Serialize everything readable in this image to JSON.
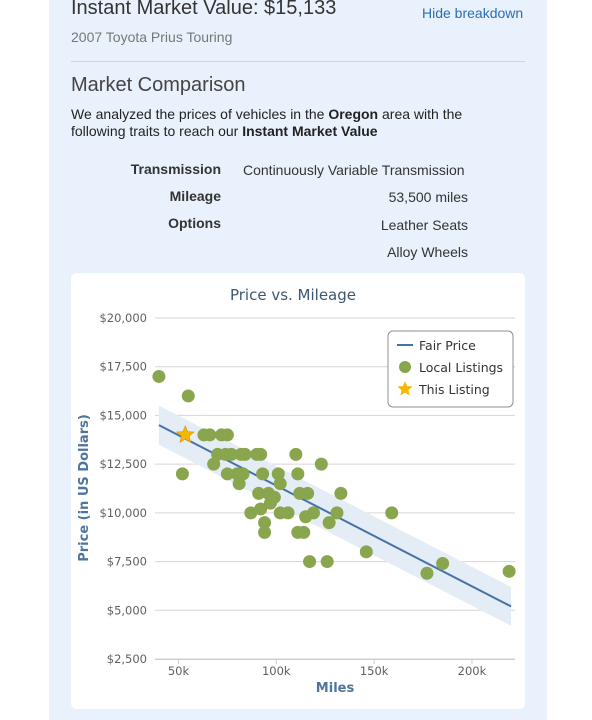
{
  "header": {
    "title": "Instant Market Value: $15,133",
    "hide_label": "Hide breakdown",
    "vehicle": "2007 Toyota Prius Touring"
  },
  "comparison": {
    "title": "Market Comparison",
    "desc_prefix": "We analyzed the prices of vehicles in the ",
    "region": "Oregon",
    "desc_middle": " area with the following traits to reach our ",
    "imv": "Instant Market Value",
    "traits": [
      {
        "label": "Transmission",
        "values": [
          "Continuously Variable Transmission"
        ]
      },
      {
        "label": "Mileage",
        "values": [
          "53,500 miles"
        ]
      },
      {
        "label": "Options",
        "values": [
          "Leather Seats",
          "Alloy Wheels"
        ]
      }
    ]
  },
  "chart_data": {
    "type": "scatter",
    "title": "Price vs. Mileage",
    "xlabel": "Miles",
    "ylabel": "Price (in US Dollars)",
    "xlim": [
      38000,
      222000
    ],
    "ylim": [
      2500,
      20000
    ],
    "x_ticks": [
      50000,
      100000,
      150000,
      200000
    ],
    "x_tick_labels": [
      "50k",
      "100k",
      "150k",
      "200k"
    ],
    "y_ticks": [
      2500,
      5000,
      7500,
      10000,
      12500,
      15000,
      17500,
      20000
    ],
    "y_tick_labels": [
      "$2,500",
      "$5,000",
      "$7,500",
      "$10,000",
      "$12,500",
      "$15,000",
      "$17,500",
      "$20,000"
    ],
    "grid": true,
    "legend_position": "top-right",
    "legend": [
      "Fair Price",
      "Local Listings",
      "This Listing"
    ],
    "colors": {
      "fair_price": "#4572a7",
      "band": "#e4ecf5",
      "local": "#89a54e",
      "this": "#f5b800"
    },
    "fair_price": {
      "x": [
        40000,
        220000
      ],
      "y": [
        14500,
        5200
      ]
    },
    "band_halfwidth": 1000,
    "local_listings": [
      [
        40000,
        17000
      ],
      [
        55000,
        16000
      ],
      [
        52000,
        12000
      ],
      [
        63000,
        14000
      ],
      [
        66000,
        14000
      ],
      [
        72000,
        14000
      ],
      [
        75000,
        14000
      ],
      [
        68000,
        12500
      ],
      [
        70000,
        13000
      ],
      [
        74000,
        13000
      ],
      [
        77000,
        13000
      ],
      [
        80000,
        12000
      ],
      [
        82000,
        13000
      ],
      [
        84000,
        13000
      ],
      [
        90000,
        13000
      ],
      [
        92000,
        13000
      ],
      [
        75000,
        12000
      ],
      [
        81000,
        11500
      ],
      [
        83000,
        12000
      ],
      [
        87000,
        10000
      ],
      [
        91000,
        11000
      ],
      [
        92000,
        10200
      ],
      [
        93000,
        12000
      ],
      [
        94000,
        9500
      ],
      [
        94000,
        9000
      ],
      [
        96000,
        11000
      ],
      [
        97000,
        10500
      ],
      [
        99000,
        10800
      ],
      [
        101000,
        12000
      ],
      [
        102000,
        10000
      ],
      [
        102000,
        11500
      ],
      [
        106000,
        10000
      ],
      [
        110000,
        13000
      ],
      [
        111000,
        9000
      ],
      [
        111000,
        12000
      ],
      [
        112000,
        11000
      ],
      [
        114000,
        9000
      ],
      [
        115000,
        9800
      ],
      [
        116000,
        11000
      ],
      [
        117000,
        7500
      ],
      [
        119000,
        10000
      ],
      [
        123000,
        12500
      ],
      [
        126000,
        7500
      ],
      [
        127000,
        9500
      ],
      [
        131000,
        10000
      ],
      [
        133000,
        11000
      ],
      [
        146000,
        8000
      ],
      [
        159000,
        10000
      ],
      [
        177000,
        6900
      ],
      [
        185000,
        7400
      ],
      [
        219000,
        7000
      ]
    ],
    "this_listing": [
      53500,
      14000
    ]
  }
}
